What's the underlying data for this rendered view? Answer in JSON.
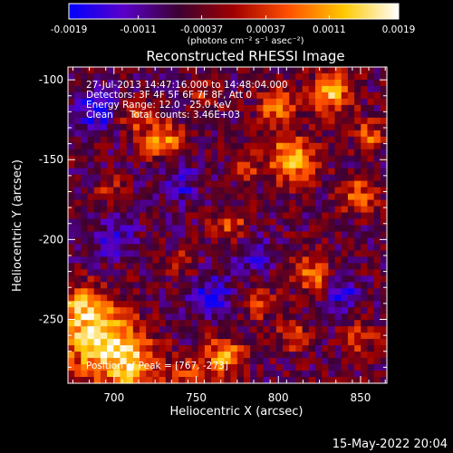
{
  "chart_data": {
    "type": "heatmap",
    "title": "Reconstructed RHESSI Image",
    "xlabel": "Heliocentric X (arcsec)",
    "ylabel": "Heliocentric Y (arcsec)",
    "xlim": [
      672,
      866
    ],
    "ylim": [
      -290,
      -92
    ],
    "x_ticks": [
      700,
      750,
      800,
      850
    ],
    "y_ticks": [
      -100,
      -150,
      -200,
      -250
    ],
    "x_tick_labels": [
      "700",
      "750",
      "800",
      "850"
    ],
    "y_tick_labels": [
      "-100",
      "-150",
      "-200",
      "-250"
    ],
    "colorbar": {
      "range": [
        -0.0019,
        0.0019
      ],
      "ticks": [
        -0.0019,
        -0.0011,
        -0.00037,
        0.00037,
        0.0011,
        0.0019
      ],
      "tick_labels": [
        "-0.0019",
        "-0.0011",
        "-0.00037",
        "0.00037",
        "0.0011",
        "0.0019"
      ],
      "units": "(photons cm⁻² s⁻¹ asec⁻²)",
      "colormap": [
        "#0000ff",
        "#5a00c8",
        "#3c0032",
        "#a00000",
        "#ff5000",
        "#ffc800",
        "#ffffff"
      ]
    },
    "annotations": {
      "time": "27-Jul-2013 14:47:16.000 to 14:48:04.000",
      "detectors": "Detectors: 3F 4F 5F 6F 7F 8F, Att 0",
      "energy": "Energy Range: 12.0 - 25.0 keV",
      "method": "Clean",
      "counts": "Total counts: 3.46E+03",
      "peak": "Position of Peak = [767, -273]"
    },
    "grid": false,
    "legend": "none",
    "image": {
      "nx": 49,
      "ny": 50,
      "background": -0.00055,
      "sources": [
        {
          "x": 690,
          "y": -262,
          "amp": 0.0021,
          "w": 16
        },
        {
          "x": 712,
          "y": -280,
          "amp": 0.0015,
          "w": 12
        },
        {
          "x": 680,
          "y": -240,
          "amp": 0.0011,
          "w": 9
        },
        {
          "x": 767,
          "y": -273,
          "amp": 0.0016,
          "w": 8
        },
        {
          "x": 745,
          "y": -285,
          "amp": 0.001,
          "w": 7
        },
        {
          "x": 729,
          "y": -138,
          "amp": 0.0016,
          "w": 8
        },
        {
          "x": 712,
          "y": -124,
          "amp": 0.0011,
          "w": 7
        },
        {
          "x": 770,
          "y": -190,
          "amp": 0.0012,
          "w": 7
        },
        {
          "x": 808,
          "y": -150,
          "amp": 0.0019,
          "w": 10
        },
        {
          "x": 832,
          "y": -108,
          "amp": 0.0018,
          "w": 9
        },
        {
          "x": 800,
          "y": -118,
          "amp": 0.0014,
          "w": 8
        },
        {
          "x": 848,
          "y": -172,
          "amp": 0.0012,
          "w": 8
        },
        {
          "x": 820,
          "y": -222,
          "amp": 0.0013,
          "w": 8
        },
        {
          "x": 788,
          "y": -240,
          "amp": 0.0009,
          "w": 7
        },
        {
          "x": 808,
          "y": -260,
          "amp": 0.001,
          "w": 7
        },
        {
          "x": 850,
          "y": -262,
          "amp": 0.001,
          "w": 7
        },
        {
          "x": 740,
          "y": -215,
          "amp": 0.0007,
          "w": 6
        },
        {
          "x": 698,
          "y": -168,
          "amp": 0.0007,
          "w": 6
        },
        {
          "x": 756,
          "y": -112,
          "amp": 0.0008,
          "w": 6
        },
        {
          "x": 855,
          "y": -135,
          "amp": 0.0011,
          "w": 7
        },
        {
          "x": 780,
          "y": -155,
          "amp": 0.0008,
          "w": 6
        }
      ],
      "negatives": [
        {
          "x": 690,
          "y": -118,
          "amp": -0.0013,
          "w": 9
        },
        {
          "x": 760,
          "y": -235,
          "amp": -0.0011,
          "w": 9
        },
        {
          "x": 740,
          "y": -165,
          "amp": -0.0009,
          "w": 8
        },
        {
          "x": 700,
          "y": -200,
          "amp": -0.0008,
          "w": 9
        },
        {
          "x": 785,
          "y": -210,
          "amp": -0.0009,
          "w": 8
        },
        {
          "x": 840,
          "y": -235,
          "amp": -0.001,
          "w": 7
        }
      ]
    }
  },
  "footer": {
    "date": "15-May-2022 20:04"
  }
}
